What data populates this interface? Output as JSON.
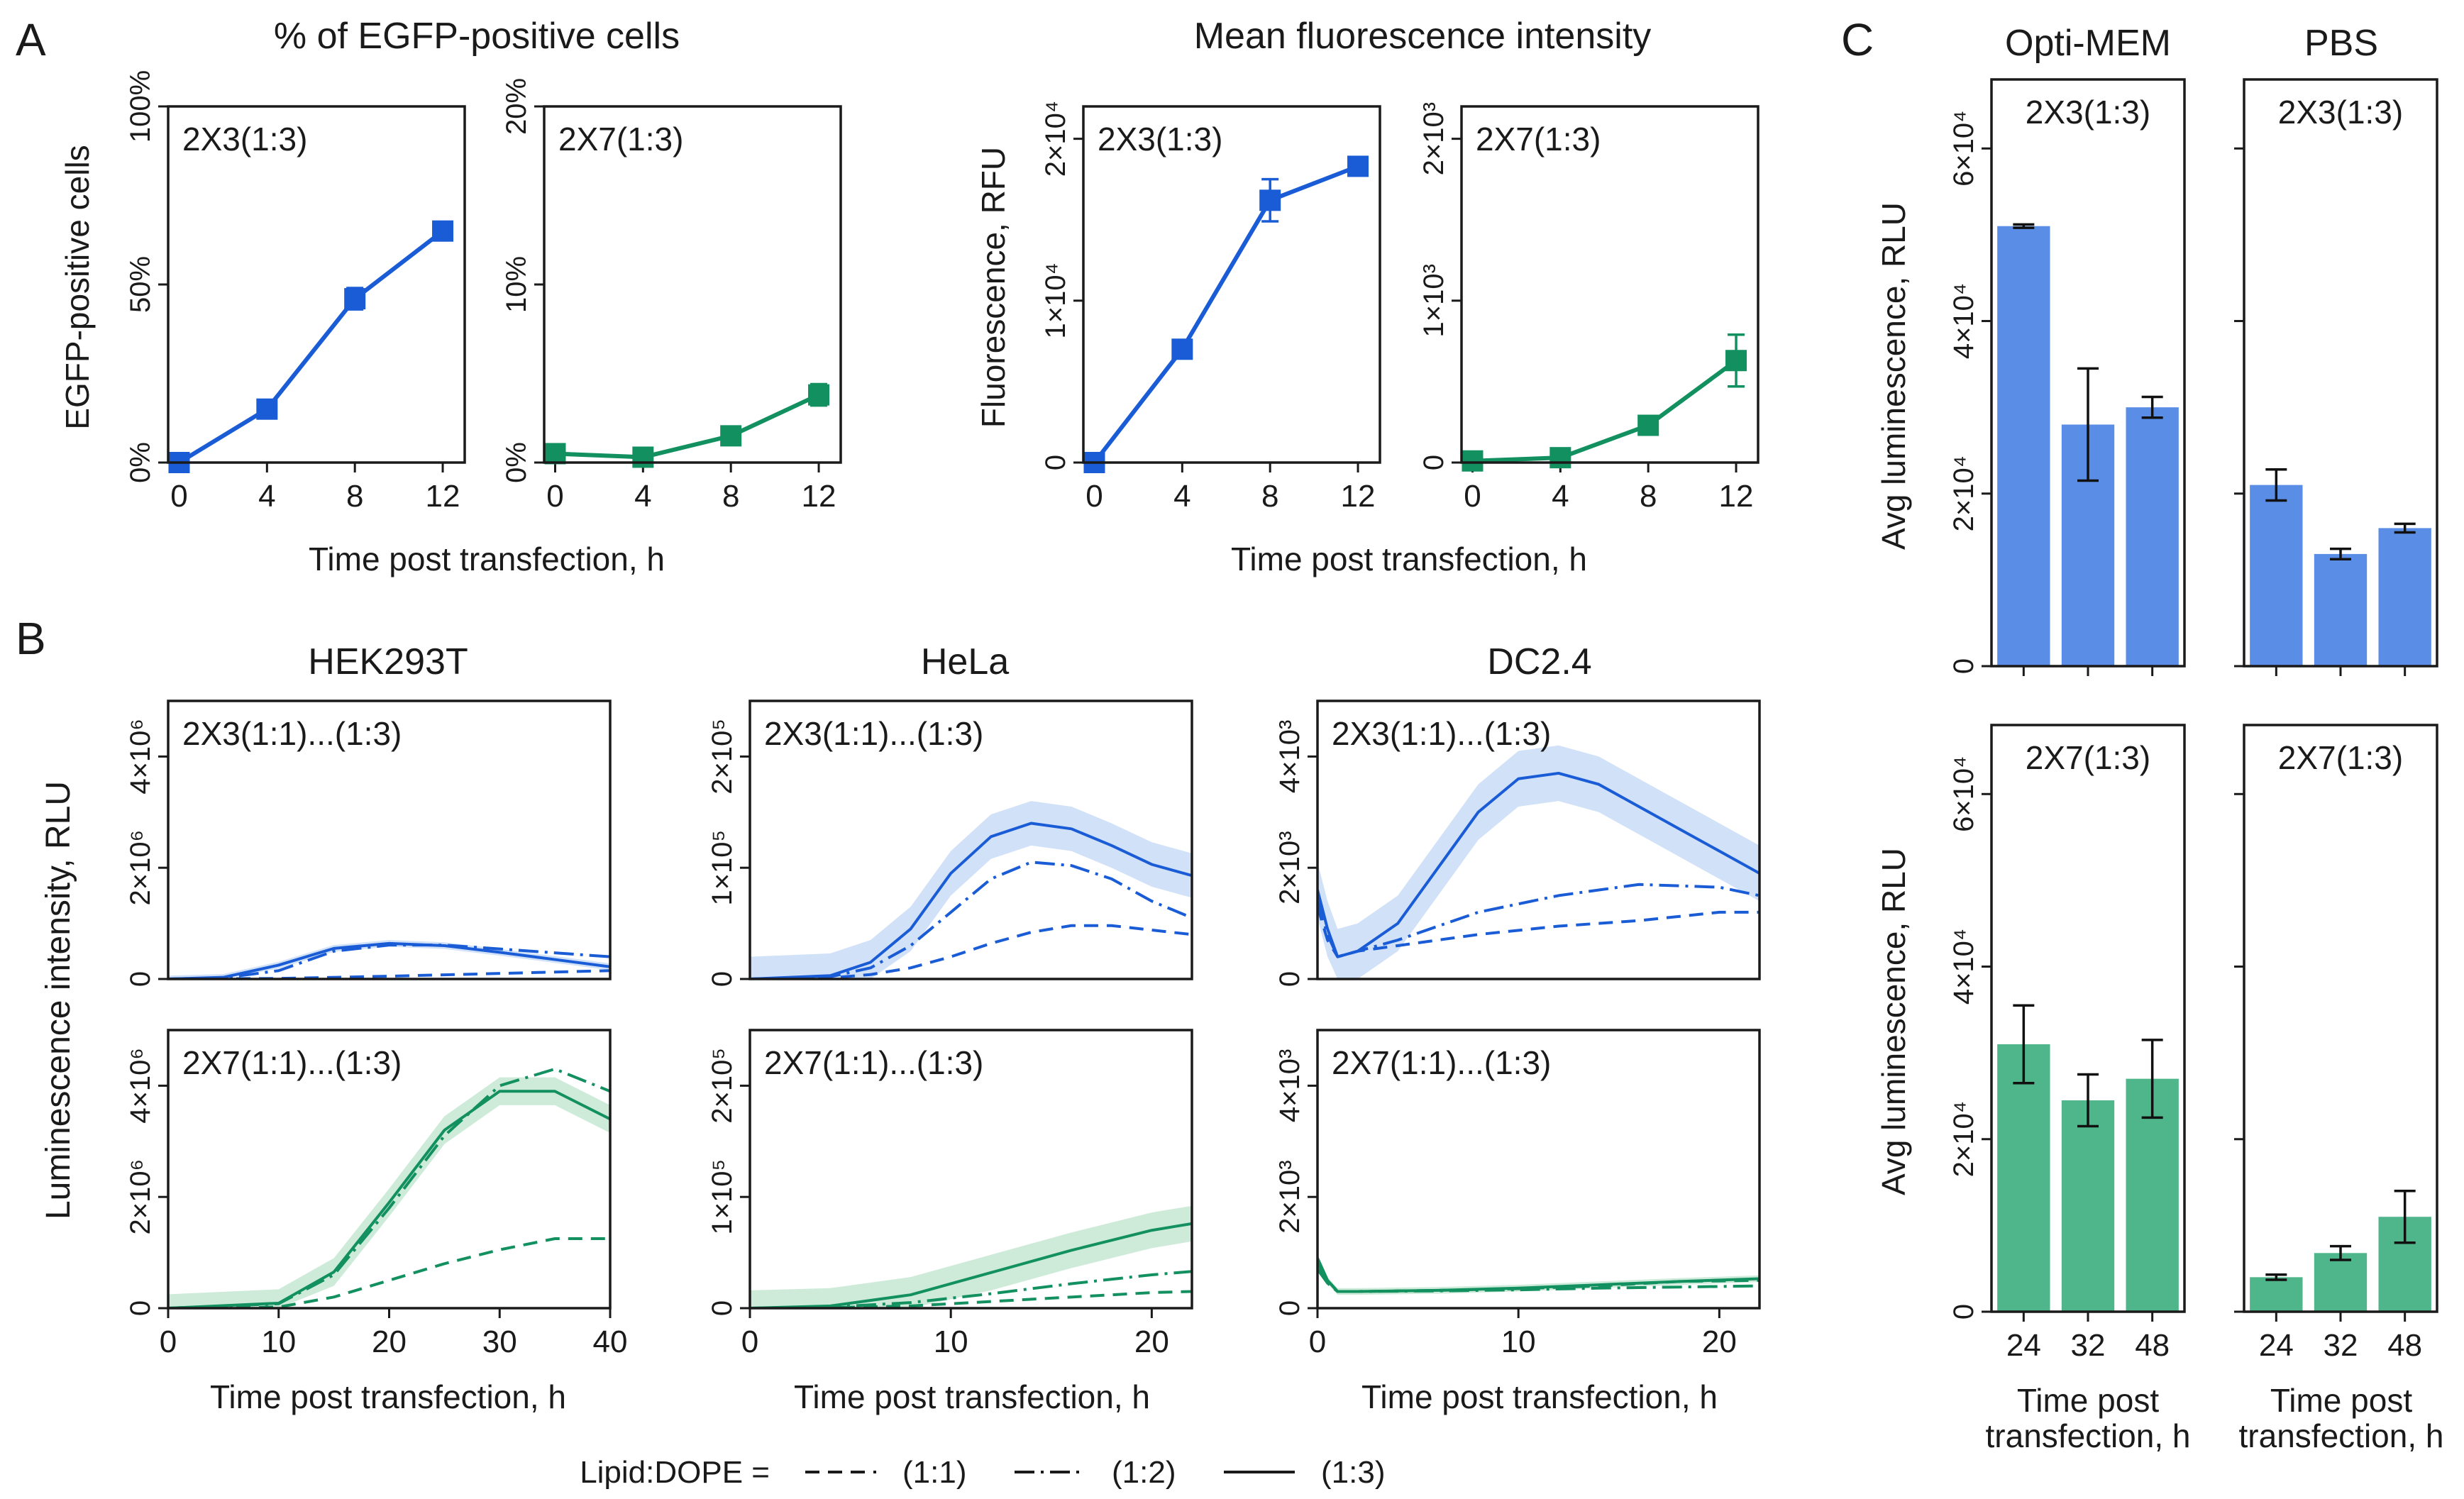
{
  "colors": {
    "blue": "#1a5cd6",
    "green": "#139060",
    "blue_bar": "#5a8ee6",
    "green_bar": "#4fb58a",
    "blue_band": "#c9dcf7",
    "green_band": "#c6e8d4",
    "axis": "#1a1a1a"
  },
  "panel_labels": {
    "a": "A",
    "b": "B",
    "c": "C"
  },
  "panel_a": {
    "title_left": "% of EGFP-positive cells",
    "title_right": "Mean fluorescence intensity",
    "xlabel": "Time post transfection, h",
    "ylabel_pct": "EGFP-positive cells",
    "ylabel_fluor": "Fluorescence, RFU"
  },
  "panel_b": {
    "xlabel": "Time post transfection, h",
    "ylabel": "Luminescence intensity, RLU",
    "col_titles": [
      "HEK293T",
      "HeLa",
      "DC2.4"
    ],
    "legend": {
      "prefix": "Lipid:DOPE =",
      "items": [
        {
          "label": "(1:1)",
          "style": "dashed"
        },
        {
          "label": "(1:2)",
          "style": "dashdot"
        },
        {
          "label": "(1:3)",
          "style": "solid"
        }
      ]
    }
  },
  "panel_c": {
    "col_titles": [
      "Opti-MEM",
      "PBS"
    ],
    "ylabel": "Avg luminescence, RLU",
    "xlabel_line1": "Time post",
    "xlabel_line2": "transfection, h"
  },
  "chart_data": [
    {
      "id": "a1",
      "type": "line",
      "panel": "A",
      "label": "2X3(1:3)",
      "color": "blue",
      "x": [
        0,
        4,
        8,
        12
      ],
      "y": [
        0,
        15,
        46,
        65
      ],
      "yerr": [
        0.5,
        1,
        3,
        1
      ],
      "xlim": [
        -0.5,
        13
      ],
      "ylim": [
        0,
        100
      ],
      "yticks": [
        {
          "v": 0,
          "t": "0%"
        },
        {
          "v": 50,
          "t": "50%"
        },
        {
          "v": 100,
          "t": "100%"
        }
      ],
      "xticks": [
        {
          "v": 0,
          "t": "0"
        },
        {
          "v": 4,
          "t": "4"
        },
        {
          "v": 8,
          "t": "8"
        },
        {
          "v": 12,
          "t": "12"
        }
      ]
    },
    {
      "id": "a2",
      "type": "line",
      "panel": "A",
      "label": "2X7(1:3)",
      "color": "green",
      "x": [
        0,
        4,
        8,
        12
      ],
      "y": [
        0.5,
        0.3,
        1.5,
        3.8
      ],
      "yerr": [
        0.2,
        0.2,
        0.3,
        0.6
      ],
      "xlim": [
        -0.5,
        13
      ],
      "ylim": [
        0,
        20
      ],
      "yticks": [
        {
          "v": 0,
          "t": "0%"
        },
        {
          "v": 10,
          "t": "10%"
        },
        {
          "v": 20,
          "t": "20%"
        }
      ],
      "xticks": [
        {
          "v": 0,
          "t": "0"
        },
        {
          "v": 4,
          "t": "4"
        },
        {
          "v": 8,
          "t": "8"
        },
        {
          "v": 12,
          "t": "12"
        }
      ]
    },
    {
      "id": "a3",
      "type": "line",
      "panel": "A",
      "label": "2X3(1:3)",
      "color": "blue",
      "x": [
        0,
        4,
        8,
        12
      ],
      "y": [
        0,
        7000,
        16200,
        18300
      ],
      "yerr": [
        100,
        300,
        1300,
        300
      ],
      "xlim": [
        -0.5,
        13
      ],
      "ylim": [
        0,
        22000
      ],
      "yticks": [
        {
          "v": 0,
          "t": "0"
        },
        {
          "v": 10000,
          "t": "1×10⁴"
        },
        {
          "v": 20000,
          "t": "2×10⁴"
        }
      ],
      "xticks": [
        {
          "v": 0,
          "t": "0"
        },
        {
          "v": 4,
          "t": "4"
        },
        {
          "v": 8,
          "t": "8"
        },
        {
          "v": 12,
          "t": "12"
        }
      ]
    },
    {
      "id": "a4",
      "type": "line",
      "panel": "A",
      "label": "2X7(1:3)",
      "color": "green",
      "x": [
        0,
        4,
        8,
        12
      ],
      "y": [
        10,
        30,
        230,
        630
      ],
      "yerr": [
        10,
        10,
        30,
        160
      ],
      "xlim": [
        -0.5,
        13
      ],
      "ylim": [
        0,
        2200
      ],
      "yticks": [
        {
          "v": 0,
          "t": "0"
        },
        {
          "v": 1000,
          "t": "1×10³"
        },
        {
          "v": 2000,
          "t": "2×10³"
        }
      ],
      "xticks": [
        {
          "v": 0,
          "t": "0"
        },
        {
          "v": 4,
          "t": "4"
        },
        {
          "v": 8,
          "t": "8"
        },
        {
          "v": 12,
          "t": "12"
        }
      ]
    },
    {
      "id": "b1",
      "type": "line",
      "panel": "B",
      "label": "2X3(1:1)...(1:3)",
      "color": "blue",
      "xlim": [
        0,
        40
      ],
      "ylim": [
        0,
        5000000
      ],
      "xticks": [],
      "yticks": [
        {
          "v": 0,
          "t": "0"
        },
        {
          "v": 2000000,
          "t": "2×10⁶"
        },
        {
          "v": 4000000,
          "t": "4×10⁶"
        }
      ],
      "series": [
        {
          "name": "(1:1)",
          "style": "dashed",
          "x": [
            0,
            10,
            20,
            30,
            40
          ],
          "y": [
            0,
            10000,
            50000,
            100000,
            150000
          ]
        },
        {
          "name": "(1:2)",
          "style": "dashdot",
          "x": [
            0,
            5,
            10,
            15,
            20,
            25,
            30,
            35,
            40
          ],
          "y": [
            0,
            20000,
            150000,
            500000,
            610000,
            610000,
            540000,
            470000,
            400000
          ]
        },
        {
          "name": "(1:3)",
          "style": "solid",
          "x": [
            0,
            5,
            10,
            15,
            20,
            25,
            30,
            35,
            40
          ],
          "y": [
            0,
            30000,
            250000,
            550000,
            640000,
            600000,
            480000,
            350000,
            220000
          ],
          "band": 60000
        }
      ]
    },
    {
      "id": "b2",
      "type": "line",
      "panel": "B",
      "label": "2X3(1:1)...(1:3)",
      "color": "blue",
      "xlim": [
        0,
        22
      ],
      "ylim": [
        0,
        250000
      ],
      "xticks": [],
      "yticks": [
        {
          "v": 0,
          "t": "0"
        },
        {
          "v": 100000,
          "t": "1×10⁵"
        },
        {
          "v": 200000,
          "t": "2×10⁵"
        }
      ],
      "series": [
        {
          "name": "(1:1)",
          "style": "dashed",
          "x": [
            0,
            4,
            6,
            8,
            10,
            12,
            14,
            16,
            18,
            20,
            22
          ],
          "y": [
            0,
            1000,
            4000,
            10000,
            20000,
            32000,
            42000,
            48000,
            48000,
            44000,
            40000
          ]
        },
        {
          "name": "(1:2)",
          "style": "dashdot",
          "x": [
            0,
            4,
            6,
            8,
            10,
            12,
            14,
            16,
            18,
            20,
            22
          ],
          "y": [
            0,
            2000,
            10000,
            30000,
            60000,
            90000,
            105000,
            102000,
            90000,
            70000,
            55000
          ]
        },
        {
          "name": "(1:3)",
          "style": "solid",
          "x": [
            0,
            4,
            6,
            8,
            10,
            12,
            14,
            16,
            18,
            20,
            22
          ],
          "y": [
            0,
            3000,
            15000,
            45000,
            95000,
            128000,
            140000,
            135000,
            120000,
            103000,
            93000
          ],
          "band": 20000
        }
      ]
    },
    {
      "id": "b3",
      "type": "line",
      "panel": "B",
      "label": "2X3(1:1)...(1:3)",
      "color": "blue",
      "xlim": [
        0,
        22
      ],
      "ylim": [
        0,
        5000
      ],
      "xticks": [],
      "yticks": [
        {
          "v": 0,
          "t": "0"
        },
        {
          "v": 2000,
          "t": "2×10³"
        },
        {
          "v": 4000,
          "t": "4×10³"
        }
      ],
      "series": [
        {
          "name": "(1:1)",
          "style": "dashed",
          "x": [
            0,
            0.5,
            1,
            2,
            4,
            8,
            12,
            16,
            20,
            22
          ],
          "y": [
            1300,
            700,
            400,
            500,
            600,
            800,
            950,
            1050,
            1200,
            1200
          ]
        },
        {
          "name": "(1:2)",
          "style": "dashdot",
          "x": [
            0,
            0.5,
            1,
            2,
            4,
            8,
            12,
            16,
            20,
            22
          ],
          "y": [
            1400,
            800,
            400,
            500,
            700,
            1200,
            1500,
            1700,
            1650,
            1500
          ]
        },
        {
          "name": "(1:3)",
          "style": "solid",
          "x": [
            0,
            0.5,
            1,
            2,
            4,
            6,
            8,
            10,
            12,
            14,
            16,
            18,
            20,
            22
          ],
          "y": [
            1600,
            900,
            400,
            500,
            1000,
            2000,
            3000,
            3600,
            3700,
            3500,
            3100,
            2700,
            2300,
            1900
          ],
          "band": 500
        }
      ]
    },
    {
      "id": "b4",
      "type": "line",
      "panel": "B",
      "label": "2X7(1:1)...(1:3)",
      "color": "green",
      "xlim": [
        0,
        40
      ],
      "ylim": [
        0,
        5000000
      ],
      "xticks": [
        {
          "v": 0,
          "t": "0"
        },
        {
          "v": 10,
          "t": "10"
        },
        {
          "v": 20,
          "t": "20"
        },
        {
          "v": 30,
          "t": "30"
        },
        {
          "v": 40,
          "t": "40"
        }
      ],
      "yticks": [
        {
          "v": 0,
          "t": "0"
        },
        {
          "v": 2000000,
          "t": "2×10⁶"
        },
        {
          "v": 4000000,
          "t": "4×10⁶"
        }
      ],
      "series": [
        {
          "name": "(1:1)",
          "style": "dashed",
          "x": [
            0,
            10,
            15,
            20,
            25,
            30,
            35,
            40
          ],
          "y": [
            0,
            20000,
            200000,
            500000,
            800000,
            1050000,
            1250000,
            1250000
          ]
        },
        {
          "name": "(1:2)",
          "style": "dashdot",
          "x": [
            0,
            10,
            15,
            20,
            25,
            30,
            35,
            40
          ],
          "y": [
            0,
            80000,
            600000,
            1800000,
            3100000,
            4000000,
            4300000,
            3900000
          ]
        },
        {
          "name": "(1:3)",
          "style": "solid",
          "x": [
            0,
            10,
            15,
            20,
            25,
            30,
            35,
            40
          ],
          "y": [
            0,
            90000,
            650000,
            1900000,
            3200000,
            3900000,
            3900000,
            3400000
          ],
          "band": 250000
        }
      ]
    },
    {
      "id": "b5",
      "type": "line",
      "panel": "B",
      "label": "2X7(1:1)...(1:3)",
      "color": "green",
      "xlim": [
        0,
        22
      ],
      "ylim": [
        0,
        250000
      ],
      "xticks": [
        {
          "v": 0,
          "t": "0"
        },
        {
          "v": 10,
          "t": "10"
        },
        {
          "v": 20,
          "t": "20"
        }
      ],
      "yticks": [
        {
          "v": 0,
          "t": "0"
        },
        {
          "v": 100000,
          "t": "1×10⁵"
        },
        {
          "v": 200000,
          "t": "2×10⁵"
        }
      ],
      "series": [
        {
          "name": "(1:1)",
          "style": "dashed",
          "x": [
            0,
            4,
            8,
            12,
            16,
            20,
            22
          ],
          "y": [
            0,
            500,
            2000,
            6000,
            10000,
            14000,
            15000
          ]
        },
        {
          "name": "(1:2)",
          "style": "dashdot",
          "x": [
            0,
            4,
            8,
            12,
            16,
            20,
            22
          ],
          "y": [
            0,
            1000,
            5000,
            13000,
            22000,
            30000,
            33000
          ]
        },
        {
          "name": "(1:3)",
          "style": "solid",
          "x": [
            0,
            4,
            8,
            12,
            16,
            20,
            22
          ],
          "y": [
            0,
            2000,
            12000,
            32000,
            52000,
            70000,
            76000
          ],
          "band": 16000
        }
      ]
    },
    {
      "id": "b6",
      "type": "line",
      "panel": "B",
      "label": "2X7(1:1)...(1:3)",
      "color": "green",
      "xlim": [
        0,
        22
      ],
      "ylim": [
        0,
        5000
      ],
      "xticks": [
        {
          "v": 0,
          "t": "0"
        },
        {
          "v": 10,
          "t": "10"
        },
        {
          "v": 20,
          "t": "20"
        }
      ],
      "yticks": [
        {
          "v": 0,
          "t": "0"
        },
        {
          "v": 2000,
          "t": "2×10³"
        },
        {
          "v": 4000,
          "t": "4×10³"
        }
      ],
      "series": [
        {
          "name": "(1:1)",
          "style": "dashed",
          "x": [
            0,
            0.5,
            1,
            2,
            6,
            10,
            14,
            18,
            22
          ],
          "y": [
            800,
            500,
            300,
            300,
            320,
            350,
            400,
            480,
            500
          ]
        },
        {
          "name": "(1:2)",
          "style": "dashdot",
          "x": [
            0,
            0.5,
            1,
            2,
            6,
            10,
            14,
            18,
            22
          ],
          "y": [
            700,
            450,
            300,
            300,
            310,
            330,
            360,
            380,
            400
          ]
        },
        {
          "name": "(1:3)",
          "style": "solid",
          "x": [
            0,
            0.5,
            1,
            2,
            6,
            10,
            14,
            18,
            22
          ],
          "y": [
            900,
            500,
            300,
            300,
            320,
            360,
            420,
            480,
            530
          ],
          "band": 60
        }
      ]
    },
    {
      "id": "c1",
      "type": "bar",
      "panel": "C",
      "label": "2X3(1:3)",
      "color": "blue",
      "categories": [
        "24",
        "32",
        "48"
      ],
      "values": [
        51000,
        28000,
        30000
      ],
      "err": [
        200,
        6500,
        1200
      ],
      "ylim": [
        0,
        68000
      ],
      "show_xticklabels": false,
      "yticks": [
        {
          "v": 0,
          "t": "0"
        },
        {
          "v": 20000,
          "t": "2×10⁴"
        },
        {
          "v": 40000,
          "t": "4×10⁴"
        },
        {
          "v": 60000,
          "t": "6×10⁴"
        }
      ]
    },
    {
      "id": "c2",
      "type": "bar",
      "panel": "C",
      "label": "2X3(1:3)",
      "color": "blue",
      "categories": [
        "24",
        "32",
        "48"
      ],
      "values": [
        21000,
        13000,
        16000
      ],
      "err": [
        1800,
        600,
        500
      ],
      "ylim": [
        0,
        68000
      ],
      "show_xticklabels": false,
      "yticks": [
        {
          "v": 0,
          "t": ""
        },
        {
          "v": 20000,
          "t": ""
        },
        {
          "v": 40000,
          "t": ""
        },
        {
          "v": 60000,
          "t": ""
        }
      ]
    },
    {
      "id": "c3",
      "type": "bar",
      "panel": "C",
      "label": "2X7(1:3)",
      "color": "green",
      "categories": [
        "24",
        "32",
        "48"
      ],
      "values": [
        31000,
        24500,
        27000
      ],
      "err": [
        4500,
        3000,
        4500
      ],
      "ylim": [
        0,
        68000
      ],
      "show_xticklabels": true,
      "yticks": [
        {
          "v": 0,
          "t": "0"
        },
        {
          "v": 20000,
          "t": "2×10⁴"
        },
        {
          "v": 40000,
          "t": "4×10⁴"
        },
        {
          "v": 60000,
          "t": "6×10⁴"
        }
      ]
    },
    {
      "id": "c4",
      "type": "bar",
      "panel": "C",
      "label": "2X7(1:3)",
      "color": "green",
      "categories": [
        "24",
        "32",
        "48"
      ],
      "values": [
        4000,
        6800,
        11000
      ],
      "err": [
        300,
        800,
        3000
      ],
      "ylim": [
        0,
        68000
      ],
      "show_xticklabels": true,
      "yticks": [
        {
          "v": 0,
          "t": ""
        },
        {
          "v": 20000,
          "t": ""
        },
        {
          "v": 40000,
          "t": ""
        },
        {
          "v": 60000,
          "t": ""
        }
      ]
    }
  ]
}
